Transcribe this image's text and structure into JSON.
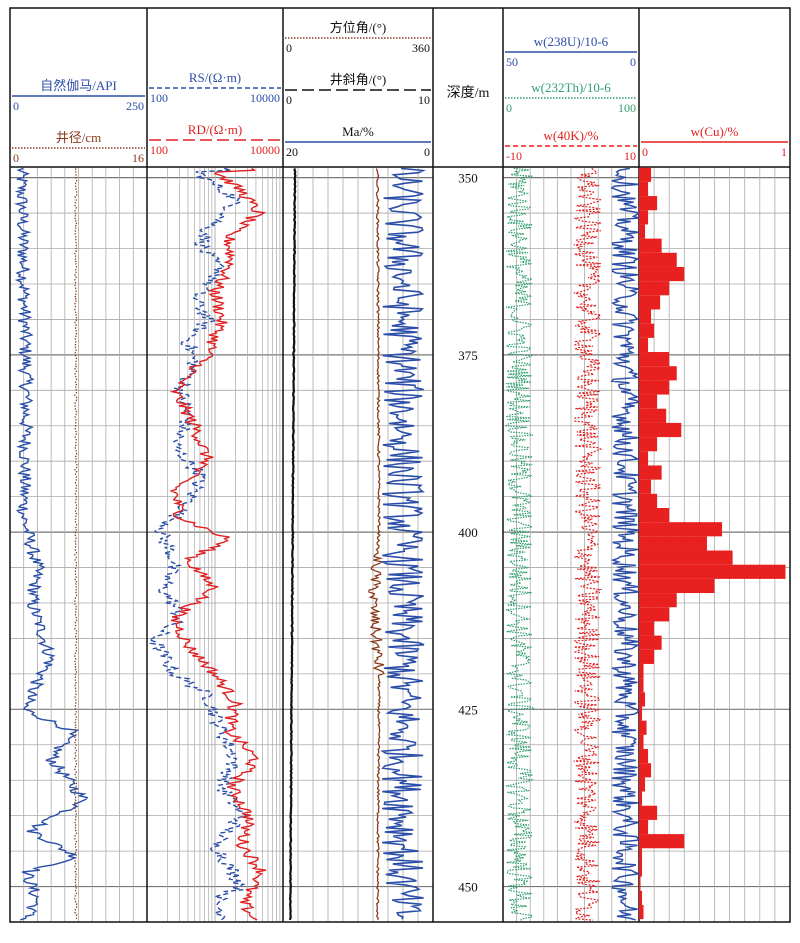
{
  "chart_data": {
    "type": "line",
    "depth_axis": {
      "label": "深度/m",
      "ticks": [
        "350",
        "375",
        "400",
        "425",
        "450"
      ],
      "range": [
        348.5,
        455
      ]
    },
    "tracks": [
      {
        "curves": [
          {
            "label": "自然伽马/API",
            "min": "0",
            "max": "250",
            "color": "#2b4ea8",
            "style": "solid"
          },
          {
            "label": "井径/cm",
            "min": "0",
            "max": "16",
            "color": "#8b3a1a",
            "style": "dotted"
          }
        ]
      },
      {
        "curves": [
          {
            "label": "RS/(Ω·m)",
            "min": "100",
            "max": "10000",
            "color": "#2b4ea8",
            "style": "dashed"
          },
          {
            "label": "RD/(Ω·m)",
            "min": "100",
            "max": "10000",
            "color": "#e02020",
            "style": "longdash"
          }
        ]
      },
      {
        "curves": [
          {
            "label": "方位角/(°)",
            "min": "0",
            "max": "360",
            "color": "#8b3a1a",
            "style": "dotted"
          },
          {
            "label": "井斜角/(°)",
            "min": "0",
            "max": "10",
            "color": "#111111",
            "style": "longdash"
          },
          {
            "label": "Ma/%",
            "min": "20",
            "max": "0",
            "color": "#2b4ea8",
            "style": "solid"
          }
        ]
      },
      {
        "curves": [
          {
            "label": "w(238U)/10-6",
            "min": "50",
            "max": "0",
            "color": "#2b4ea8",
            "style": "solid"
          },
          {
            "label": "w(232Th)/10-6",
            "min": "0",
            "max": "100",
            "color": "#2e9e6e",
            "style": "dotted"
          },
          {
            "label": "w(40K)/%",
            "min": "-10",
            "max": "10",
            "color": "#e02020",
            "style": "dashed"
          }
        ]
      },
      {
        "curves": [
          {
            "label": "w(Cu)/%",
            "min": "0",
            "max": "1",
            "color": "#e02020",
            "style": "solid"
          }
        ]
      }
    ],
    "cu_bars": [
      {
        "depth": 350,
        "value": 0.08
      },
      {
        "depth": 352,
        "value": 0.06
      },
      {
        "depth": 354,
        "value": 0.12
      },
      {
        "depth": 356,
        "value": 0.06
      },
      {
        "depth": 358,
        "value": 0.04
      },
      {
        "depth": 360,
        "value": 0.15
      },
      {
        "depth": 362,
        "value": 0.25
      },
      {
        "depth": 364,
        "value": 0.3
      },
      {
        "depth": 366,
        "value": 0.2
      },
      {
        "depth": 368,
        "value": 0.14
      },
      {
        "depth": 370,
        "value": 0.08
      },
      {
        "depth": 372,
        "value": 0.1
      },
      {
        "depth": 374,
        "value": 0.06
      },
      {
        "depth": 376,
        "value": 0.2
      },
      {
        "depth": 378,
        "value": 0.25
      },
      {
        "depth": 380,
        "value": 0.2
      },
      {
        "depth": 382,
        "value": 0.12
      },
      {
        "depth": 384,
        "value": 0.18
      },
      {
        "depth": 386,
        "value": 0.28
      },
      {
        "depth": 388,
        "value": 0.12
      },
      {
        "depth": 390,
        "value": 0.06
      },
      {
        "depth": 392,
        "value": 0.15
      },
      {
        "depth": 394,
        "value": 0.08
      },
      {
        "depth": 396,
        "value": 0.12
      },
      {
        "depth": 398,
        "value": 0.2
      },
      {
        "depth": 400,
        "value": 0.55
      },
      {
        "depth": 402,
        "value": 0.45
      },
      {
        "depth": 404,
        "value": 0.62
      },
      {
        "depth": 406,
        "value": 0.97
      },
      {
        "depth": 408,
        "value": 0.5
      },
      {
        "depth": 410,
        "value": 0.25
      },
      {
        "depth": 412,
        "value": 0.2
      },
      {
        "depth": 414,
        "value": 0.1
      },
      {
        "depth": 416,
        "value": 0.15
      },
      {
        "depth": 418,
        "value": 0.1
      },
      {
        "depth": 420,
        "value": 0.03
      },
      {
        "depth": 422,
        "value": 0.03
      },
      {
        "depth": 424,
        "value": 0.04
      },
      {
        "depth": 426,
        "value": 0.02
      },
      {
        "depth": 428,
        "value": 0.05
      },
      {
        "depth": 430,
        "value": 0.03
      },
      {
        "depth": 432,
        "value": 0.06
      },
      {
        "depth": 434,
        "value": 0.08
      },
      {
        "depth": 436,
        "value": 0.04
      },
      {
        "depth": 438,
        "value": 0.02
      },
      {
        "depth": 440,
        "value": 0.12
      },
      {
        "depth": 442,
        "value": 0.06
      },
      {
        "depth": 444,
        "value": 0.3
      },
      {
        "depth": 446,
        "value": 0.02
      },
      {
        "depth": 448,
        "value": 0.02
      },
      {
        "depth": 450,
        "value": 0.01
      },
      {
        "depth": 452,
        "value": 0.02
      },
      {
        "depth": 454,
        "value": 0.03
      }
    ]
  }
}
